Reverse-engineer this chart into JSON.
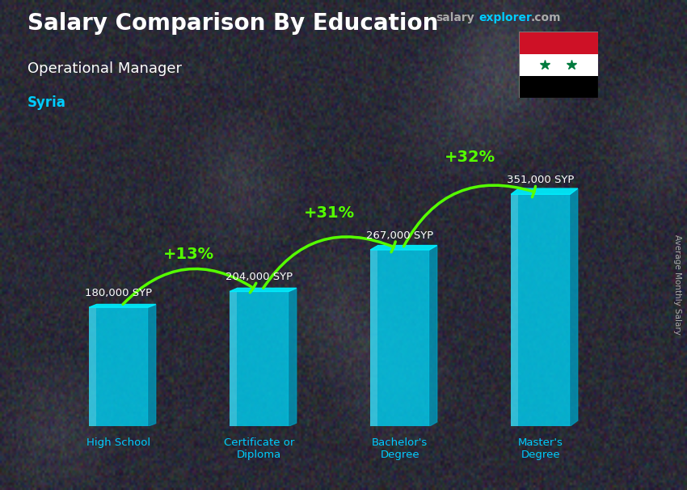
{
  "title": "Salary Comparison By Education",
  "subtitle": "Operational Manager",
  "country": "Syria",
  "ylabel": "Average Monthly Salary",
  "categories": [
    "High School",
    "Certificate or\nDiploma",
    "Bachelor's\nDegree",
    "Master's\nDegree"
  ],
  "values": [
    180000,
    204000,
    267000,
    351000
  ],
  "value_labels": [
    "180,000 SYP",
    "204,000 SYP",
    "267,000 SYP",
    "351,000 SYP"
  ],
  "pct_labels": [
    "+13%",
    "+31%",
    "+32%"
  ],
  "bar_color_front": "#00ccee",
  "bar_color_side": "#0099bb",
  "bar_color_top": "#00eeff",
  "bar_alpha": 0.82,
  "bg_color": "#3a3a4a",
  "title_color": "#ffffff",
  "subtitle_color": "#ffffff",
  "country_color": "#00ccff",
  "value_color": "#ffffff",
  "pct_color": "#55ff00",
  "arrow_color": "#55ff00",
  "xlabels_color": "#00ccff",
  "brand_salary_color": "#aaaaaa",
  "brand_explorer_color": "#00ccff",
  "brand_com_color": "#aaaaaa",
  "ylabel_color": "#aaaaaa",
  "ylim": [
    0,
    430000
  ],
  "figsize": [
    8.5,
    6.06
  ],
  "dpi": 100
}
